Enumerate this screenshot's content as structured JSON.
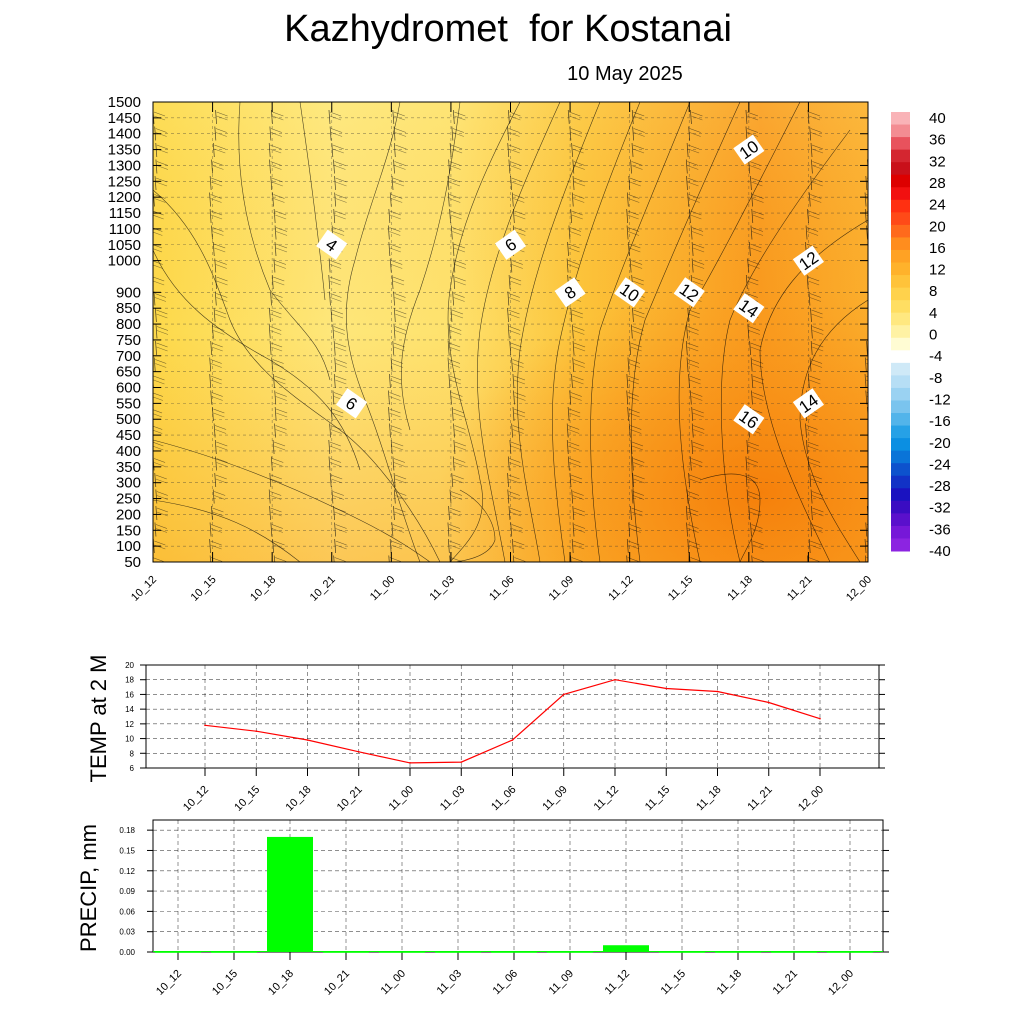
{
  "header": {
    "title": "Kazhydromet  for Kostanai",
    "date": "10 May 2025"
  },
  "time_labels": [
    "10_12",
    "10_15",
    "10_18",
    "10_21",
    "11_00",
    "11_03",
    "11_06",
    "11_09",
    "11_12",
    "11_15",
    "11_18",
    "11_21",
    "12_00"
  ],
  "chart_data": [
    {
      "type": "heatmap",
      "name": "temperature-cross-section",
      "x": [
        "10_12",
        "10_15",
        "10_18",
        "10_21",
        "11_00",
        "11_03",
        "11_06",
        "11_09",
        "11_12",
        "11_15",
        "11_18",
        "11_21",
        "12_00"
      ],
      "y_ticks": [
        50,
        100,
        150,
        200,
        250,
        300,
        350,
        400,
        450,
        500,
        550,
        600,
        650,
        700,
        750,
        800,
        850,
        900,
        1000,
        1050,
        1100,
        1150,
        1200,
        1250,
        1300,
        1350,
        1400,
        1450,
        1500
      ],
      "ylim": [
        50,
        1500
      ],
      "grid": true,
      "colorbar": {
        "labels": [
          "40",
          "36",
          "32",
          "28",
          "24",
          "20",
          "16",
          "12",
          "8",
          "4",
          "0",
          "-4",
          "-8",
          "-12",
          "-16",
          "-20",
          "-24",
          "-28",
          "-32",
          "-36",
          "-40"
        ],
        "placement": "right"
      },
      "contour_labels": [
        {
          "text": "4",
          "t": "10_21",
          "level": 1050
        },
        {
          "text": "6",
          "t": "11_06",
          "level": 1050
        },
        {
          "text": "6",
          "t": "10_22",
          "level": 550
        },
        {
          "text": "8",
          "t": "11_09",
          "level": 900
        },
        {
          "text": "10",
          "t": "11_12",
          "level": 900
        },
        {
          "text": "10",
          "t": "11_18",
          "level": 1350
        },
        {
          "text": "12",
          "t": "11_15",
          "level": 900
        },
        {
          "text": "12",
          "t": "11_21",
          "level": 1000
        },
        {
          "text": "14",
          "t": "11_18",
          "level": 850
        },
        {
          "text": "14",
          "t": "11_21",
          "level": 550
        },
        {
          "text": "16",
          "t": "11_18",
          "level": 500
        }
      ]
    },
    {
      "type": "line",
      "ylabel": "TEMP at 2 M",
      "x": [
        "10_12",
        "10_15",
        "10_18",
        "10_21",
        "11_00",
        "11_03",
        "11_06",
        "11_09",
        "11_12",
        "11_15",
        "11_18",
        "11_21",
        "12_00"
      ],
      "y": [
        11.8,
        11.0,
        9.8,
        8.2,
        6.7,
        6.8,
        9.8,
        16.0,
        18.0,
        16.8,
        16.4,
        14.9,
        12.7
      ],
      "y_ticks": [
        "6",
        "8",
        "10",
        "12",
        "14",
        "16",
        "18",
        "20"
      ],
      "ylim": [
        6,
        20
      ],
      "grid": true,
      "color": "#ff0000"
    },
    {
      "type": "bar",
      "ylabel": "PRECIP, mm",
      "categories": [
        "10_12",
        "10_15",
        "10_18",
        "10_21",
        "11_00",
        "11_03",
        "11_06",
        "11_09",
        "11_12",
        "11_15",
        "11_18",
        "11_21",
        "12_00"
      ],
      "values": [
        0,
        0,
        0.17,
        0,
        0,
        0,
        0,
        0,
        0.01,
        0,
        0,
        0,
        0
      ],
      "y_ticks": [
        "0.00",
        "0.03",
        "0.06",
        "0.09",
        "0.12",
        "0.15",
        "0.18"
      ],
      "ylim": [
        0,
        0.195
      ],
      "grid": true,
      "color": "#00ff00"
    }
  ]
}
